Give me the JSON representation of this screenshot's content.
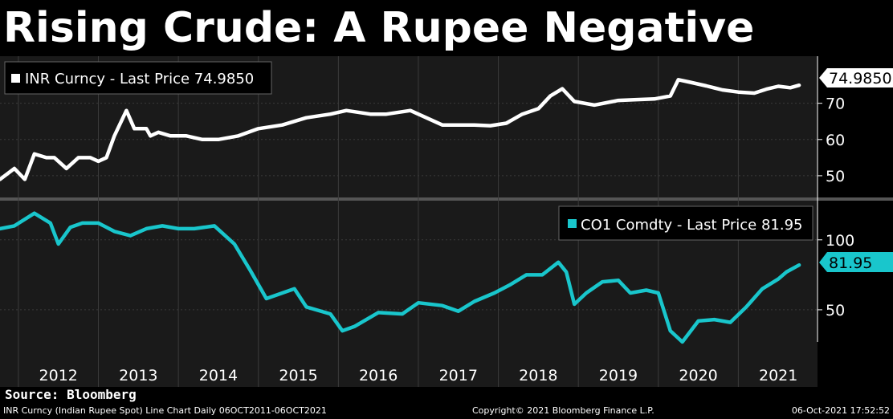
{
  "title": "Rising Crude: A Rupee Negative",
  "source": "Source: Bloomberg",
  "footer": {
    "left": "INR Curncy (Indian Rupee Spot) Line Chart  Daily 06OCT2011-06OCT2021",
    "center": "Copyright© 2021 Bloomberg Finance L.P.",
    "right": "06-Oct-2021 17:52:52"
  },
  "colors": {
    "inr": "#ffffff",
    "brent": "#19c6cc",
    "panel": "#1a1a1a",
    "grid": "#3b3b3b"
  },
  "chart_data": [
    {
      "type": "line",
      "series_name": "INR Curncy",
      "legend": "INR Curncy - Last Price 74.9850",
      "last_price_label": "74.9850",
      "last_price": 74.985,
      "ylim": [
        44,
        83
      ],
      "yticks": [
        50,
        60,
        70
      ],
      "ytick_labels": [
        "50",
        "60",
        "70"
      ],
      "x": [
        2011.77,
        2011.95,
        2012.08,
        2012.2,
        2012.35,
        2012.45,
        2012.6,
        2012.75,
        2012.9,
        2013.0,
        2013.1,
        2013.2,
        2013.35,
        2013.45,
        2013.6,
        2013.65,
        2013.75,
        2013.9,
        2014.1,
        2014.3,
        2014.5,
        2014.75,
        2015.0,
        2015.3,
        2015.6,
        2015.9,
        2016.1,
        2016.4,
        2016.6,
        2016.9,
        2017.1,
        2017.3,
        2017.5,
        2017.7,
        2017.9,
        2018.1,
        2018.3,
        2018.5,
        2018.65,
        2018.8,
        2018.95,
        2019.2,
        2019.5,
        2019.7,
        2019.95,
        2020.15,
        2020.25,
        2020.4,
        2020.6,
        2020.8,
        2021.0,
        2021.2,
        2021.35,
        2021.5,
        2021.65,
        2021.76
      ],
      "y": [
        49,
        52,
        49,
        56,
        55,
        55,
        52,
        55,
        55,
        54,
        55,
        61,
        68,
        63,
        63,
        61,
        62,
        61,
        61,
        60,
        60,
        61,
        63,
        64,
        66,
        67,
        68,
        67,
        67,
        68,
        66,
        64,
        64,
        64,
        63.8,
        64.5,
        67,
        68.5,
        72,
        74,
        70.5,
        69.5,
        70.8,
        71,
        71.2,
        72,
        76.5,
        75.8,
        74.8,
        73.7,
        73.1,
        72.8,
        73.9,
        74.7,
        74.3,
        74.985
      ]
    },
    {
      "type": "line",
      "series_name": "CO1 Comdty",
      "legend": "CO1 Comdty - Last Price 81.95",
      "last_price_label": "81.95",
      "last_price": 81.95,
      "ylim": [
        27,
        128
      ],
      "yticks": [
        50,
        100
      ],
      "ytick_labels": [
        "50",
        "100"
      ],
      "x": [
        2011.77,
        2011.95,
        2012.2,
        2012.4,
        2012.5,
        2012.65,
        2012.8,
        2013.0,
        2013.2,
        2013.4,
        2013.6,
        2013.8,
        2014.0,
        2014.2,
        2014.45,
        2014.7,
        2014.9,
        2015.1,
        2015.3,
        2015.45,
        2015.6,
        2015.9,
        2016.05,
        2016.2,
        2016.5,
        2016.8,
        2017.0,
        2017.3,
        2017.5,
        2017.7,
        2017.95,
        2018.15,
        2018.35,
        2018.55,
        2018.75,
        2018.85,
        2018.95,
        2019.1,
        2019.3,
        2019.5,
        2019.65,
        2019.85,
        2020.0,
        2020.15,
        2020.3,
        2020.5,
        2020.7,
        2020.9,
        2021.1,
        2021.3,
        2021.5,
        2021.6,
        2021.76
      ],
      "y": [
        108,
        110,
        119,
        112,
        97,
        109,
        112,
        112,
        106,
        103,
        108,
        110,
        108,
        108,
        110,
        97,
        78,
        58,
        62,
        65,
        52,
        47,
        35,
        38,
        48,
        47,
        55,
        53,
        49,
        56,
        62,
        68,
        75,
        75,
        84,
        77,
        54,
        62,
        70,
        71,
        62,
        64,
        62,
        35,
        27,
        42,
        43,
        41,
        52,
        65,
        72,
        77,
        81.95
      ]
    }
  ],
  "x_axis": {
    "xlim": [
      2011.77,
      2021.99
    ],
    "tick_labels": [
      "2012",
      "2013",
      "2014",
      "2015",
      "2016",
      "2017",
      "2018",
      "2019",
      "2020",
      "2021"
    ],
    "year_boundaries": [
      2012,
      2013,
      2014,
      2015,
      2016,
      2017,
      2018,
      2019,
      2020,
      2021
    ]
  }
}
